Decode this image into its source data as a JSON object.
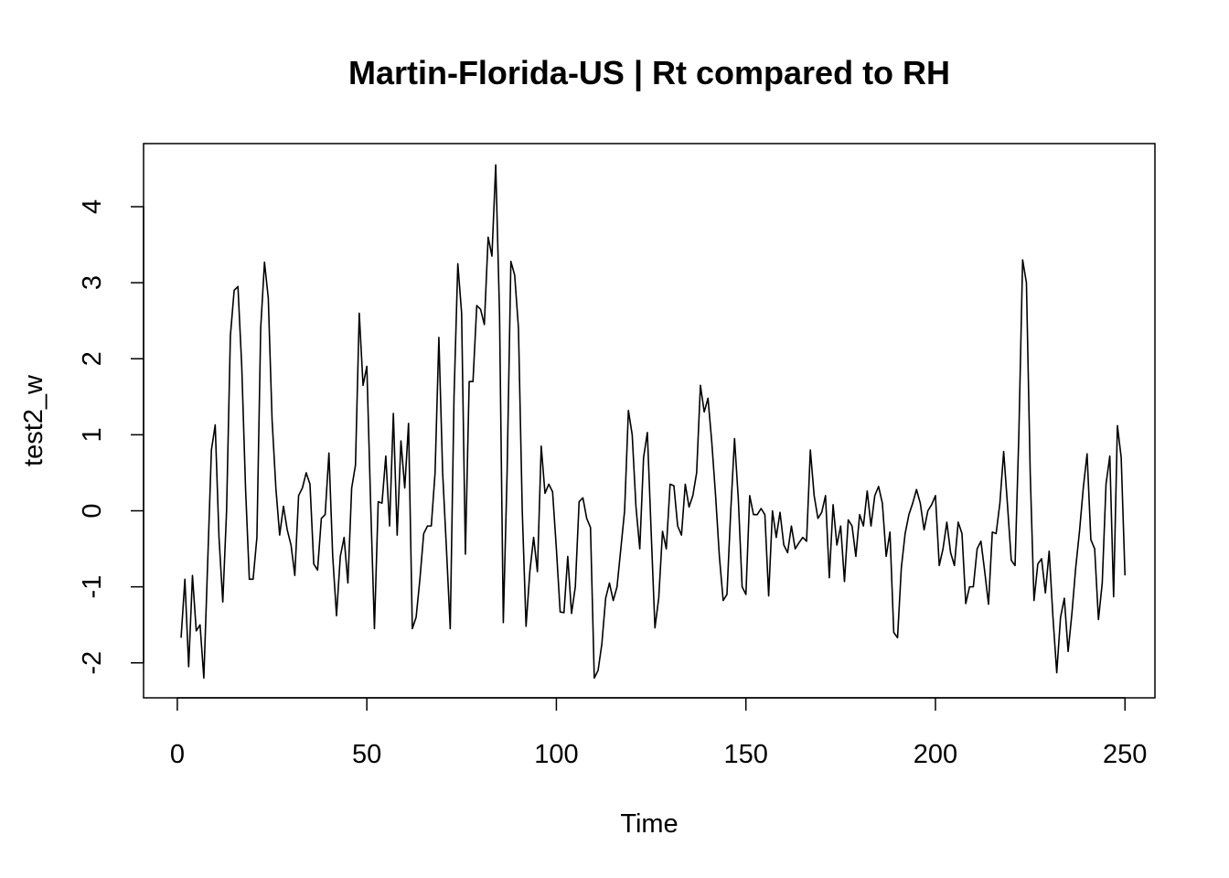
{
  "chart_data": {
    "type": "line",
    "title": "Martin-Florida-US | Rt compared to RH",
    "xlabel": "Time",
    "ylabel": "test2_w",
    "xlim": [
      -8.9,
      257.9
    ],
    "ylim": [
      -2.46,
      4.83
    ],
    "x_ticks": [
      0,
      50,
      100,
      150,
      200,
      250
    ],
    "x_tick_labels": [
      "0",
      "50",
      "100",
      "150",
      "200",
      "250"
    ],
    "y_ticks": [
      -2,
      -1,
      0,
      1,
      2,
      3,
      4
    ],
    "y_tick_labels": [
      "-2",
      "-1",
      "0",
      "1",
      "2",
      "3",
      "4"
    ],
    "grid": false,
    "line_color": "#000000",
    "series": [
      {
        "x_start": 1,
        "values": [
          -1.67,
          -0.9,
          -2.05,
          -0.85,
          -1.58,
          -1.5,
          -2.2,
          -0.7,
          0.8,
          1.13,
          -0.35,
          -1.2,
          0.0,
          2.3,
          2.9,
          2.95,
          1.9,
          0.3,
          -0.9,
          -0.9,
          -0.35,
          2.4,
          3.27,
          2.8,
          1.2,
          0.3,
          -0.32,
          0.06,
          -0.25,
          -0.45,
          -0.85,
          0.2,
          0.3,
          0.5,
          0.35,
          -0.7,
          -0.78,
          -0.1,
          -0.05,
          0.76,
          -0.6,
          -1.38,
          -0.6,
          -0.35,
          -0.95,
          0.3,
          0.6,
          2.6,
          1.65,
          1.9,
          0.1,
          -1.55,
          0.12,
          0.1,
          0.72,
          -0.2,
          1.28,
          -0.32,
          0.92,
          0.3,
          1.15,
          -1.55,
          -1.4,
          -0.9,
          -0.3,
          -0.2,
          -0.2,
          0.5,
          2.28,
          0.5,
          -0.5,
          -1.55,
          1.5,
          3.25,
          2.6,
          -0.57,
          1.7,
          1.7,
          2.7,
          2.65,
          2.45,
          3.6,
          3.35,
          4.55,
          2.6,
          -1.47,
          0.5,
          3.28,
          3.1,
          2.4,
          0.0,
          -1.52,
          -0.8,
          -0.35,
          -0.8,
          0.85,
          0.23,
          0.35,
          0.25,
          -0.5,
          -1.33,
          -1.34,
          -0.6,
          -1.35,
          -1.0,
          0.12,
          0.17,
          -0.1,
          -0.22,
          -2.2,
          -2.1,
          -1.75,
          -1.15,
          -0.95,
          -1.18,
          -1.0,
          -0.5,
          0.0,
          1.32,
          1.0,
          0.05,
          -0.5,
          0.7,
          1.03,
          -0.27,
          -1.54,
          -1.15,
          -0.27,
          -0.5,
          0.35,
          0.33,
          -0.2,
          -0.32,
          0.35,
          0.05,
          0.2,
          0.5,
          1.65,
          1.3,
          1.48,
          0.9,
          0.2,
          -0.6,
          -1.18,
          -1.1,
          0.0,
          0.95,
          0.15,
          -1.0,
          -1.1,
          0.2,
          -0.05,
          -0.05,
          0.03,
          -0.05,
          -1.12,
          0.0,
          -0.35,
          -0.02,
          -0.45,
          -0.55,
          -0.2,
          -0.5,
          -0.42,
          -0.35,
          -0.4,
          0.8,
          0.2,
          -0.1,
          -0.02,
          0.2,
          -0.88,
          0.08,
          -0.45,
          -0.2,
          -0.93,
          -0.12,
          -0.2,
          -0.6,
          -0.05,
          -0.2,
          0.26,
          -0.2,
          0.2,
          0.32,
          0.1,
          -0.6,
          -0.28,
          -1.6,
          -1.67,
          -0.75,
          -0.3,
          -0.05,
          0.1,
          0.28,
          0.1,
          -0.25,
          0.0,
          0.08,
          0.2,
          -0.72,
          -0.5,
          -0.15,
          -0.55,
          -0.72,
          -0.15,
          -0.3,
          -1.22,
          -1.0,
          -1.0,
          -0.5,
          -0.4,
          -0.8,
          -1.23,
          -0.28,
          -0.3,
          0.1,
          0.78,
          0.08,
          -0.65,
          -0.72,
          1.0,
          3.3,
          3.0,
          0.5,
          -1.18,
          -0.7,
          -0.63,
          -1.08,
          -0.53,
          -1.4,
          -2.13,
          -1.4,
          -1.15,
          -1.85,
          -1.35,
          -0.75,
          -0.27,
          0.3,
          0.75,
          -0.38,
          -0.5,
          -1.43,
          -0.95,
          0.35,
          0.72,
          -1.13,
          1.12,
          0.7,
          -0.85
        ]
      }
    ]
  }
}
